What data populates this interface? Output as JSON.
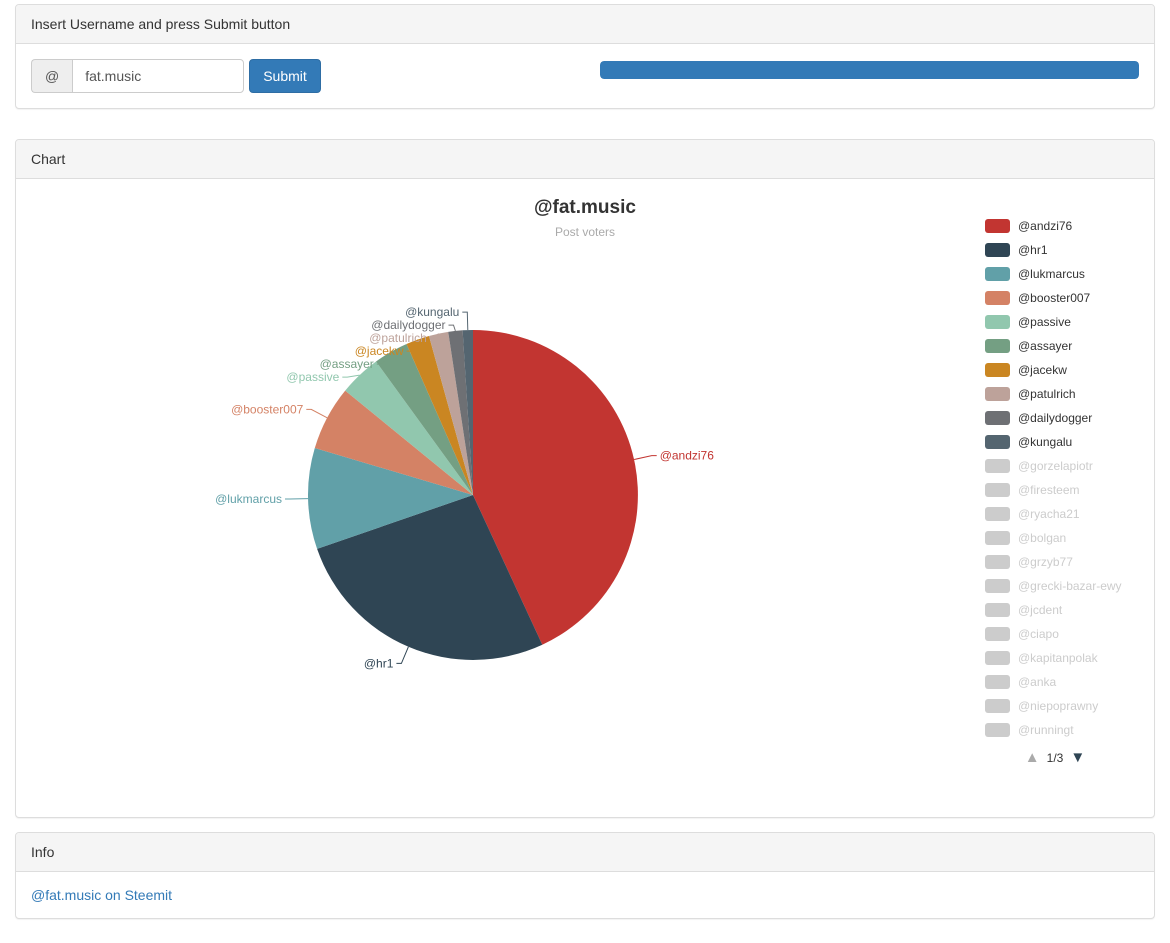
{
  "username_panel": {
    "heading": "Insert Username and press Submit button",
    "addon": "@",
    "input_value": "fat.music",
    "submit_label": "Submit",
    "progress_percent": 100
  },
  "chart_panel": {
    "heading": "Chart"
  },
  "chart_data": {
    "type": "pie",
    "title": "@fat.music",
    "subtitle": "Post voters",
    "legend_position": "right",
    "legend_page": "1/3",
    "inactive_color": "#ccc",
    "inactive_text_color": "#ccc",
    "active_text_color": "#333",
    "page_icon_color": "#2f4554",
    "page_icon_inactive_color": "#aaa",
    "slices": [
      {
        "name": "@andzi76",
        "percent": 43.1,
        "color": "#c23531"
      },
      {
        "name": "@hr1",
        "percent": 26.6,
        "color": "#2f4554"
      },
      {
        "name": "@lukmarcus",
        "percent": 9.9,
        "color": "#61a0a8"
      },
      {
        "name": "@booster007",
        "percent": 6.3,
        "color": "#d48265"
      },
      {
        "name": "@passive",
        "percent": 4.1,
        "color": "#91c7ae"
      },
      {
        "name": "@assayer",
        "percent": 3.4,
        "color": "#749f83"
      },
      {
        "name": "@jacekw",
        "percent": 2.3,
        "color": "#ca8622"
      },
      {
        "name": "@patulrich",
        "percent": 1.9,
        "color": "#bda29a"
      },
      {
        "name": "@dailydogger",
        "percent": 1.4,
        "color": "#6e7074"
      },
      {
        "name": "@kungalu",
        "percent": 1.0,
        "color": "#546570"
      }
    ],
    "legend_inactive": [
      "@gorzelapiotr",
      "@firesteem",
      "@ryacha21",
      "@bolgan",
      "@grzyb77",
      "@grecki-bazar-ewy",
      "@jcdent",
      "@ciapo",
      "@kapitanpolak",
      "@anka",
      "@niepoprawny",
      "@runningt"
    ]
  },
  "icons": {
    "page_up": "▲",
    "page_down": "▼"
  },
  "info_panel": {
    "heading": "Info",
    "link_text": "@fat.music on Steemit"
  },
  "colors": {
    "primary": "#337ab7"
  }
}
